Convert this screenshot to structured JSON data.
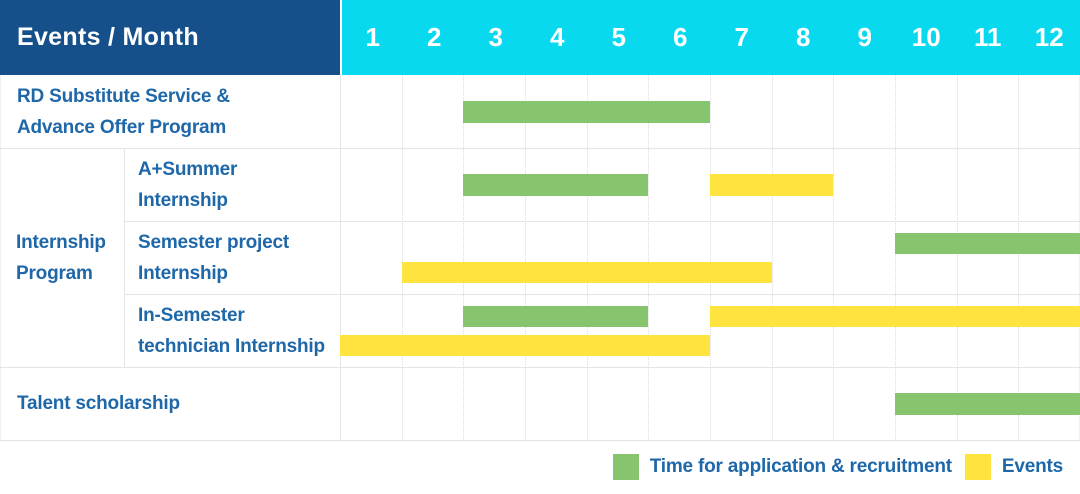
{
  "header": {
    "events_month_label": "Events / Month",
    "months": [
      "1",
      "2",
      "3",
      "4",
      "5",
      "6",
      "7",
      "8",
      "9",
      "10",
      "11",
      "12"
    ]
  },
  "colors": {
    "header_bg": "#15508b",
    "months_bg": "#09d9ef",
    "label_text": "#1e67a9",
    "green": "#86c46d",
    "yellow": "#ffe440",
    "grid_line": "#e4e4e4",
    "dotted_line": "#dcdcdc"
  },
  "chart_data": {
    "type": "bar",
    "subtype": "gantt-timeline",
    "title": "Events / Month",
    "x_axis": {
      "unit": "month",
      "ticks": [
        "1",
        "2",
        "3",
        "4",
        "5",
        "6",
        "7",
        "8",
        "9",
        "10",
        "11",
        "12"
      ],
      "range": [
        1,
        12
      ]
    },
    "grid": true,
    "legend_position": "bottom-right",
    "series_meta": {
      "recruitment": {
        "label": "Time for application & recruitment",
        "color": "#86c46d"
      },
      "events": {
        "label": "Events",
        "color": "#ffe440"
      }
    },
    "group": {
      "label_lines": [
        "Internship",
        "Program"
      ],
      "start_row": 1,
      "row_span": 3
    },
    "rows": [
      {
        "kind": "full",
        "label_lines": [
          "RD Substitute Service &",
          "Advance Offer Program"
        ],
        "bars": [
          {
            "series": "recruitment",
            "start_month": 3,
            "end_month": 6,
            "lane": "center"
          }
        ]
      },
      {
        "kind": "sub",
        "label_lines": [
          "A+Summer",
          "Internship"
        ],
        "bars": [
          {
            "series": "recruitment",
            "start_month": 3,
            "end_month": 5,
            "lane": "center"
          },
          {
            "series": "events",
            "start_month": 7,
            "end_month": 8,
            "lane": "center"
          }
        ]
      },
      {
        "kind": "sub",
        "label_lines": [
          "Semester project",
          "Internship"
        ],
        "bars": [
          {
            "series": "recruitment",
            "start_month": 10,
            "end_month": 12,
            "lane": "top"
          },
          {
            "series": "events",
            "start_month": 2,
            "end_month": 7,
            "lane": "bottom"
          }
        ]
      },
      {
        "kind": "sub",
        "label_lines": [
          "In-Semester",
          "technician Internship"
        ],
        "bars": [
          {
            "series": "recruitment",
            "start_month": 3,
            "end_month": 5,
            "lane": "top"
          },
          {
            "series": "events",
            "start_month": 7,
            "end_month": 12,
            "lane": "top"
          },
          {
            "series": "events",
            "start_month": 1,
            "end_month": 6,
            "lane": "bottom"
          }
        ]
      },
      {
        "kind": "full",
        "label_lines": [
          "Talent scholarship"
        ],
        "bars": [
          {
            "series": "recruitment",
            "start_month": 10,
            "end_month": 12,
            "lane": "center"
          }
        ]
      }
    ],
    "legend": [
      "Time for application & recruitment",
      "Events"
    ]
  }
}
